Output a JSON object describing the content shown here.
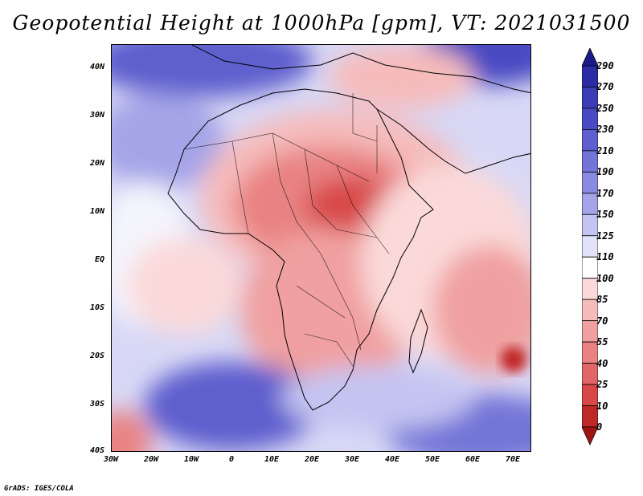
{
  "title": "Geopotential Height at 1000hPa [gpm], VT: 2021031500",
  "credit": "GrADS: IGES/COLA",
  "lat_labels": [
    "40N",
    "30N",
    "20N",
    "10N",
    "EQ",
    "10S",
    "20S",
    "30S",
    "40S"
  ],
  "lon_labels": [
    "30W",
    "20W",
    "10W",
    "0",
    "10E",
    "20E",
    "30E",
    "40E",
    "50E",
    "60E",
    "70E"
  ],
  "colorbar": {
    "labels": [
      "290",
      "270",
      "250",
      "230",
      "210",
      "190",
      "170",
      "150",
      "125",
      "110",
      "100",
      "85",
      "70",
      "55",
      "40",
      "25",
      "10",
      "0"
    ],
    "colors": [
      "#1a1a8c",
      "#2b2ba6",
      "#3c3cb4",
      "#4a4ac2",
      "#5e5ece",
      "#7474d8",
      "#8a8ae0",
      "#a4a4e8",
      "#c4c4f2",
      "#e2e2fa",
      "#ffffff",
      "#fbd9d9",
      "#f6bcbc",
      "#f0a0a0",
      "#e98383",
      "#e16666",
      "#d84848",
      "#c02828",
      "#a01414"
    ]
  }
}
